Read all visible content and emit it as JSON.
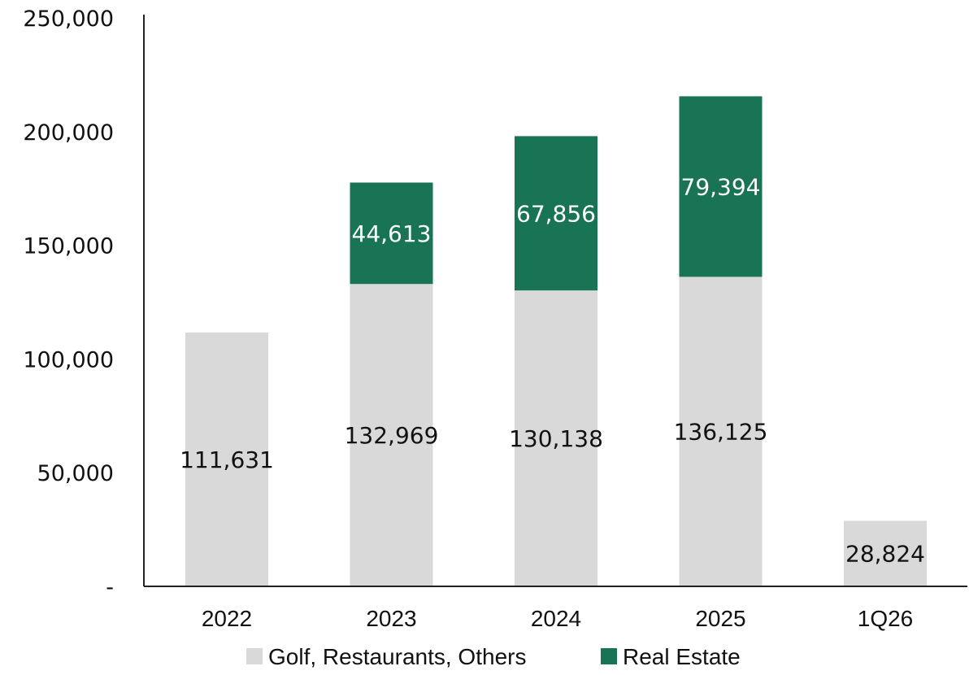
{
  "chart_data": {
    "type": "bar",
    "stacked": true,
    "categories": [
      "2022",
      "2023",
      "2024",
      "2025",
      "1Q26"
    ],
    "series": [
      {
        "name": "Golf, Restaurants, Others",
        "color": "#d9d9d9",
        "values": [
          111631,
          132969,
          130138,
          136125,
          28824
        ],
        "labels": [
          "111,631",
          "132,969",
          "130,138",
          "136,125",
          "28,824"
        ]
      },
      {
        "name": "Real Estate",
        "color": "#187454",
        "values": [
          0,
          44613,
          67856,
          79394,
          0
        ],
        "labels": [
          "",
          "44,613",
          "67,856",
          "79,394",
          ""
        ]
      }
    ],
    "y_ticks": [
      "-",
      "50,000",
      "100,000",
      "150,000",
      "200,000",
      "250,000"
    ],
    "y_tick_values": [
      0,
      50000,
      100000,
      150000,
      200000,
      250000
    ],
    "ylim": [
      0,
      250000
    ],
    "legend_position": "bottom",
    "grid": false
  }
}
